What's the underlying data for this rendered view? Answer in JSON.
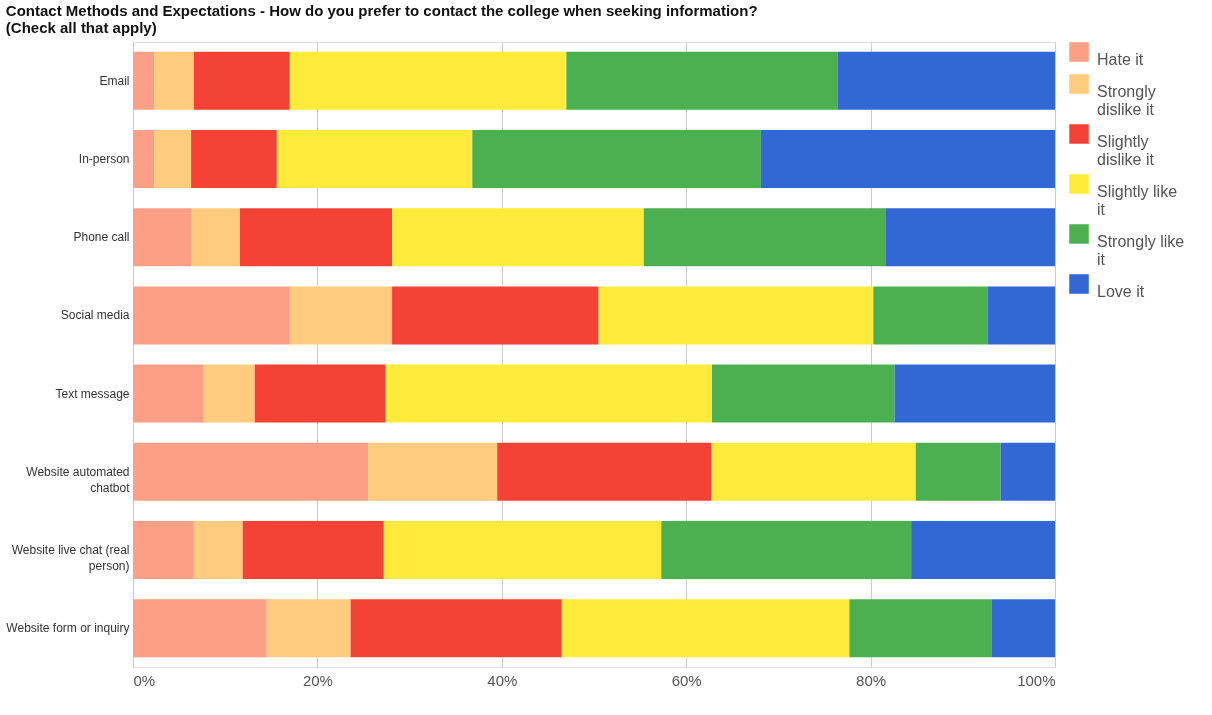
{
  "chart_data": {
    "type": "bar",
    "orientation": "horizontal",
    "stacked": true,
    "title": "Contact Methods and Expectations - How do you prefer to contact the college when seeking information? (Check all that apply)",
    "categories": [
      "Email",
      "In-person",
      "Phone call",
      "Social media",
      "Text message",
      "Website automated chatbot",
      "Website live chat (real person)",
      "Website form or inquiry"
    ],
    "series": [
      {
        "name": "Hate it",
        "color": "#fc9f85",
        "values": [
          2.3,
          2.3,
          6.3,
          17.0,
          7.6,
          25.5,
          6.6,
          14.5
        ]
      },
      {
        "name": "Strongly dislike it",
        "color": "#fecb7f",
        "values": [
          4.3,
          4.0,
          5.3,
          11.1,
          5.6,
          14.0,
          5.3,
          9.1
        ]
      },
      {
        "name": "Slightly dislike it",
        "color": "#f44336",
        "values": [
          10.4,
          9.3,
          16.5,
          22.4,
          14.2,
          23.2,
          15.3,
          22.9
        ]
      },
      {
        "name": "Slightly like it",
        "color": "#ffeb3b",
        "values": [
          30.0,
          21.2,
          27.3,
          29.8,
          35.4,
          22.2,
          30.1,
          31.2
        ]
      },
      {
        "name": "Strongly like it",
        "color": "#4caf50",
        "values": [
          29.4,
          31.3,
          26.2,
          12.4,
          19.8,
          9.2,
          27.1,
          15.4
        ]
      },
      {
        "name": "Love it",
        "color": "#3367d6",
        "values": [
          23.6,
          31.9,
          18.4,
          7.3,
          17.4,
          5.9,
          15.6,
          6.9
        ]
      }
    ],
    "xlim": [
      0,
      100
    ],
    "xticks": [
      {
        "value": 0,
        "label": "0%"
      },
      {
        "value": 20,
        "label": "20%"
      },
      {
        "value": 40,
        "label": "40%"
      },
      {
        "value": 60,
        "label": "60%"
      },
      {
        "value": 80,
        "label": "80%"
      },
      {
        "value": 100,
        "label": "100%"
      }
    ],
    "grid": "x",
    "legend": "top right"
  }
}
